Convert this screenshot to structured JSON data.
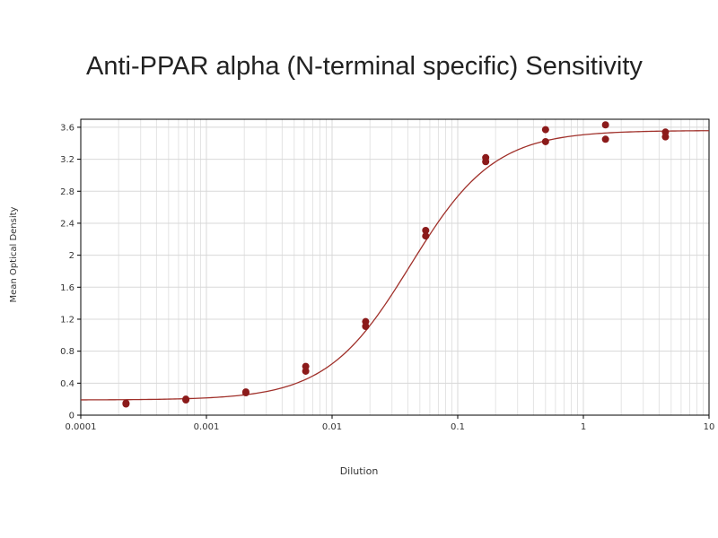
{
  "chart_data": {
    "type": "scatter",
    "title": "Anti-PPAR alpha (N-terminal specific) Sensitivity",
    "xlabel": "Dilution",
    "ylabel": "Mean Optical Density",
    "xscale": "log",
    "xlim": [
      0.0001,
      10
    ],
    "ylim": [
      0,
      3.7
    ],
    "x_ticks": [
      "0.0001",
      "0.001",
      "0.01",
      "0.1",
      "1",
      "10"
    ],
    "y_ticks": [
      "0",
      "0.4",
      "0.8",
      "1.2",
      "1.6",
      "2",
      "2.4",
      "2.8",
      "3.2",
      "3.6"
    ],
    "grid": true,
    "legend": "none",
    "colors": {
      "points": "#8b1a1a",
      "curve": "#a0302a",
      "grid": "#d8d8d8",
      "axis": "#000000"
    },
    "series": [
      {
        "points": [
          {
            "x": 0.000229,
            "y": 0.15
          },
          {
            "x": 0.000229,
            "y": 0.14
          },
          {
            "x": 0.000686,
            "y": 0.2
          },
          {
            "x": 0.000686,
            "y": 0.19
          },
          {
            "x": 0.00206,
            "y": 0.29
          },
          {
            "x": 0.00206,
            "y": 0.28
          },
          {
            "x": 0.00617,
            "y": 0.61
          },
          {
            "x": 0.00617,
            "y": 0.55
          },
          {
            "x": 0.0185,
            "y": 1.17
          },
          {
            "x": 0.0185,
            "y": 1.11
          },
          {
            "x": 0.0556,
            "y": 2.31
          },
          {
            "x": 0.0556,
            "y": 2.24
          },
          {
            "x": 0.167,
            "y": 3.22
          },
          {
            "x": 0.167,
            "y": 3.17
          },
          {
            "x": 0.5,
            "y": 3.57
          },
          {
            "x": 0.5,
            "y": 3.42
          },
          {
            "x": 1.5,
            "y": 3.63
          },
          {
            "x": 1.5,
            "y": 3.45
          },
          {
            "x": 4.5,
            "y": 3.54
          },
          {
            "x": 4.5,
            "y": 3.48
          }
        ]
      }
    ],
    "fit_curve": {
      "model": "4PL",
      "bottom": 0.19,
      "top": 3.56,
      "ec50": 0.042,
      "hill": 1.3
    }
  }
}
